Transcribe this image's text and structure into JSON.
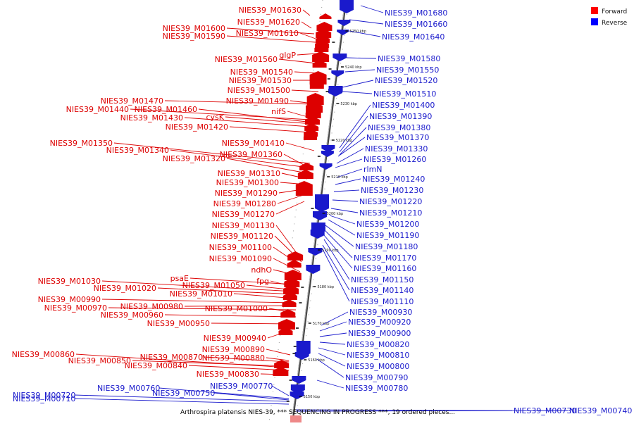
{
  "legend": [
    {
      "label": "Forward",
      "color": "#ff0000"
    },
    {
      "label": "Reverse",
      "color": "#0000ff"
    }
  ],
  "caption": "Arthrospira platensis NIES-39, *** SEQUENCING IN PROGRESS ***, 19 ordered pieces...",
  "colors": {
    "forward": "#dd0000",
    "reverse": "#1a1acc",
    "axis": "#666666"
  },
  "scale": {
    "start_kbp": 5150,
    "end_kbp": 5250
  },
  "scale_ticks": [
    "5150 kbp",
    "5160 kbp",
    "5170 kbp",
    "5180 kbp",
    "5190 kbp",
    "5200 kbp",
    "5210 kbp",
    "5220 kbp",
    "5230 kbp",
    "5240 kbp",
    "5250 kbp"
  ],
  "forward_labels": [
    "NIES39_M01630",
    "NIES39_M01620",
    "NIES39_M01600",
    "NIES39_M01610",
    "NIES39_M01590",
    "glgP",
    "NIES39_M01560",
    "NIES39_M01540",
    "NIES39_M01530",
    "NIES39_M01500",
    "NIES39_M01470",
    "NIES39_M01490",
    "NIES39_M01440",
    "NIES39_M01460",
    "nifS",
    "NIES39_M01430",
    "cysK",
    "NIES39_M01420",
    "NIES39_M01350",
    "NIES39_M01410",
    "NIES39_M01340",
    "NIES39_M01360",
    "NIES39_M01320",
    "NIES39_M01310",
    "NIES39_M01300",
    "NIES39_M01290",
    "NIES39_M01280",
    "NIES39_M01270",
    "NIES39_M01130",
    "NIES39_M01120",
    "NIES39_M01100",
    "NIES39_M01090",
    "ndhO",
    "psaE",
    "fpg",
    "NIES39_M01030",
    "NIES39_M01050",
    "NIES39_M01020",
    "NIES39_M01010",
    "NIES39_M00990",
    "NIES39_M00980",
    "NIES39_M00970",
    "NIES39_M01000",
    "NIES39_M00960",
    "NIES39_M00950",
    "NIES39_M00940",
    "NIES39_M00890",
    "NIES39_M00860",
    "NIES39_M00870",
    "NIES39_M00880",
    "NIES39_M00850",
    "NIES39_M00840",
    "NIES39_M00830"
  ],
  "reverse_labels": [
    "NIES39_M01680",
    "NIES39_M01660",
    "NIES39_M01640",
    "NIES39_M01580",
    "NIES39_M01550",
    "NIES39_M01520",
    "NIES39_M01510",
    "NIES39_M01400",
    "NIES39_M01390",
    "NIES39_M01380",
    "NIES39_M01370",
    "NIES39_M01330",
    "NIES39_M01260",
    "rlmN",
    "NIES39_M01240",
    "NIES39_M01230",
    "NIES39_M01220",
    "NIES39_M01210",
    "NIES39_M01200",
    "NIES39_M01190",
    "NIES39_M01180",
    "NIES39_M01170",
    "NIES39_M01160",
    "NIES39_M01150",
    "NIES39_M01140",
    "NIES39_M01110",
    "NIES39_M00930",
    "NIES39_M00920",
    "NIES39_M00900",
    "NIES39_M00820",
    "NIES39_M00810",
    "NIES39_M00800",
    "NIES39_M00790",
    "NIES39_M00780",
    "NIES39_M00770",
    "NIES39_M00760",
    "NIES39_M00750",
    "NIES39_M00720",
    "NIES39_M00710",
    "NIES39_M00730",
    "NIES39_M00740"
  ]
}
